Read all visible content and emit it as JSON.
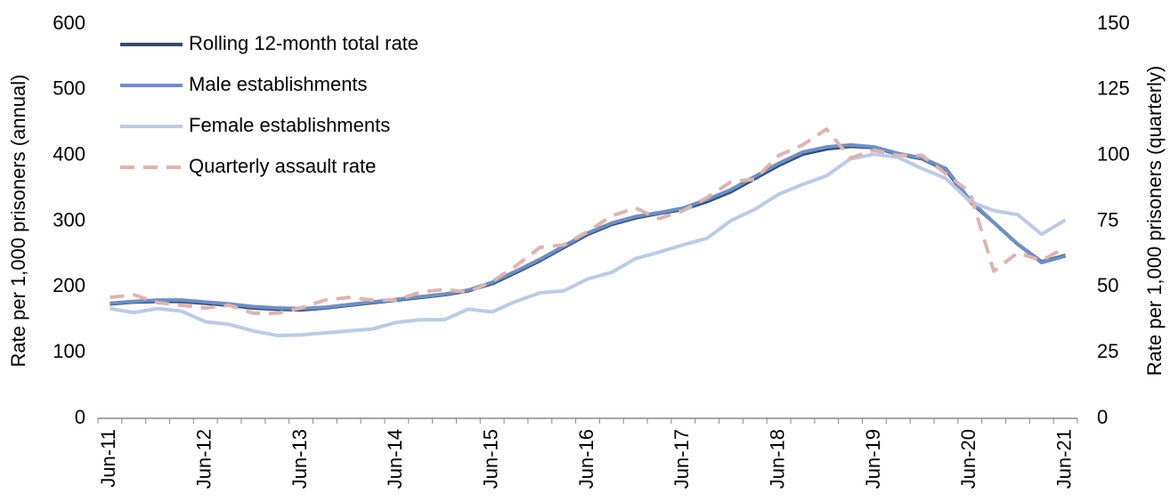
{
  "chart_data": {
    "type": "line",
    "y_label": "Rate per 1,000 prisoners (annual)",
    "y2_label": "Rate per 1,000 prisoners (quarterly)",
    "categories": [
      "Jun-11",
      null,
      null,
      null,
      "Jun-12",
      null,
      null,
      null,
      "Jun-13",
      null,
      null,
      null,
      "Jun-14",
      null,
      null,
      null,
      "Jun-15",
      null,
      null,
      null,
      "Jun-16",
      null,
      null,
      null,
      "Jun-17",
      null,
      null,
      null,
      "Jun-18",
      null,
      null,
      null,
      "Jun-19",
      null,
      null,
      null,
      "Jun-20",
      null,
      null,
      null,
      "Jun-21"
    ],
    "ylim": [
      0,
      600
    ],
    "yticks": [
      0,
      100,
      200,
      300,
      400,
      500,
      600
    ],
    "y2lim": [
      0,
      150
    ],
    "y2ticks": [
      0,
      25,
      50,
      75,
      100,
      125,
      150
    ],
    "legend": "upper left",
    "series": [
      {
        "name": "Rolling 12-month total rate",
        "color": "#2f4a78",
        "values": [
          174,
          177,
          178,
          178,
          175,
          172,
          168,
          166,
          165,
          168,
          172,
          176,
          180,
          184,
          188,
          194,
          205,
          222,
          240,
          260,
          280,
          295,
          305,
          312,
          318,
          330,
          345,
          365,
          385,
          402,
          410,
          414,
          412,
          402,
          395,
          378,
          330,
          298,
          265,
          238,
          248
        ]
      },
      {
        "name": "Male establishments",
        "color": "#6f8fc0",
        "values": [
          175,
          178,
          180,
          180,
          177,
          174,
          170,
          168,
          167,
          169,
          173,
          177,
          181,
          185,
          189,
          195,
          207,
          224,
          242,
          262,
          282,
          297,
          307,
          313,
          320,
          333,
          348,
          368,
          388,
          405,
          413,
          416,
          413,
          403,
          396,
          380,
          332,
          298,
          265,
          237,
          247
        ]
      },
      {
        "name": "Female establishments",
        "color": "#bccbe4",
        "values": [
          167,
          161,
          167,
          163,
          147,
          143,
          133,
          126,
          127,
          130,
          133,
          136,
          146,
          150,
          150,
          166,
          162,
          178,
          191,
          194,
          212,
          222,
          243,
          253,
          264,
          274,
          301,
          318,
          341,
          356,
          369,
          395,
          402,
          397,
          380,
          365,
          330,
          316,
          310,
          280,
          302
        ]
      },
      {
        "name": "Quarterly assault rate",
        "color": "#dcb4b1",
        "axis": "y2",
        "dashed": true,
        "values": [
          46,
          47,
          44,
          43,
          42,
          43,
          40,
          40,
          42,
          45,
          46,
          45,
          45,
          48,
          49,
          48,
          52,
          58,
          65,
          66,
          71,
          77,
          80,
          76,
          79,
          84,
          90,
          91,
          100,
          104,
          110,
          99,
          102,
          100,
          100,
          93,
          86,
          56,
          63,
          60,
          65
        ]
      }
    ]
  }
}
